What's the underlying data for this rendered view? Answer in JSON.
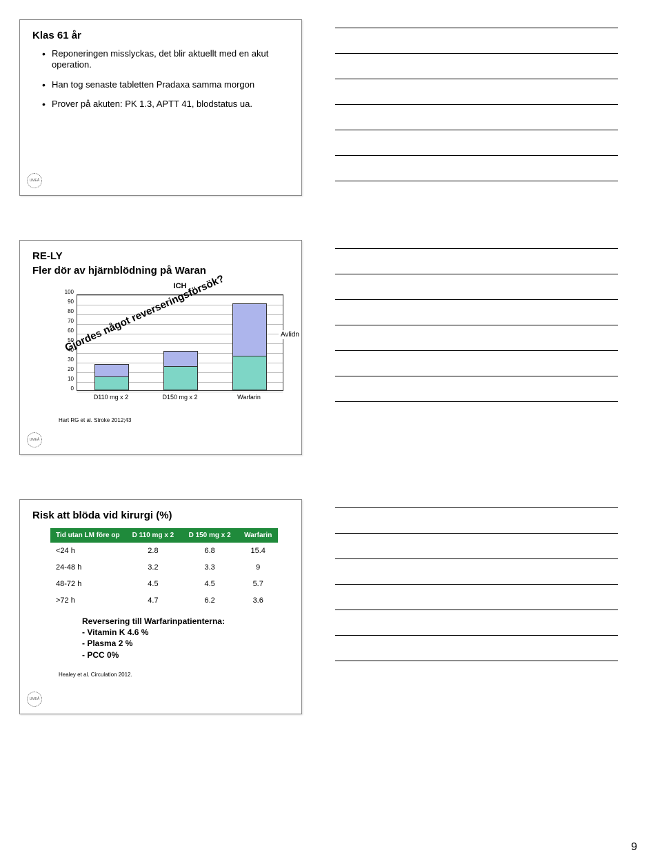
{
  "page_number": "9",
  "rule_lines_per_block": 7,
  "slide1": {
    "title": "Klas 61 år",
    "bullets": [
      "Reponeringen misslyckas, det blir aktuellt med en akut operation.",
      "Han tog senaste tabletten Pradaxa samma morgon",
      "Prover på akuten: PK 1.3, APTT 41, blodstatus ua."
    ]
  },
  "slide2": {
    "title_line1": "RE-LY",
    "title_line2": "Fler dör av hjärnblödning på Waran",
    "chart": {
      "title": "ICH",
      "ymax": 100,
      "yticks": [
        0,
        10,
        20,
        30,
        40,
        50,
        60,
        70,
        80,
        90,
        100
      ],
      "categories": [
        "D110 mg x 2",
        "D150 mg x 2",
        "Warfarin"
      ],
      "lower_values": [
        14,
        25,
        36
      ],
      "upper_values": [
        27,
        41,
        90
      ],
      "lower_color": "#7ed6c6",
      "upper_color": "#adb5ec",
      "border_color": "#333333",
      "grid_color": "#bbbbbb",
      "legend_label": "Avlidn",
      "overlay_text": "Gjordes något reverseringsförsök?"
    },
    "citation": "Hart RG et al. Stroke 2012;43"
  },
  "slide3": {
    "title": "Risk att blöda vid kirurgi (%)",
    "header_bg": "#1f8a3b",
    "columns": [
      "Tid utan LM före op",
      "D 110 mg x 2",
      "D 150 mg x 2",
      "Warfarin"
    ],
    "rows": [
      [
        "<24 h",
        "2.8",
        "6.8",
        "15.4"
      ],
      [
        "24-48 h",
        "3.2",
        "3.3",
        "9"
      ],
      [
        "48-72 h",
        "4.5",
        "4.5",
        "5.7"
      ],
      [
        ">72 h",
        "4.7",
        "6.2",
        "3.6"
      ]
    ],
    "reversing_title": "Reversering till Warfarinpatienterna:",
    "reversing_items": [
      "- Vitamin K 4.6 %",
      "- Plasma 2 %",
      "- PCC 0%"
    ],
    "citation": "Healey et al. Circulation 2012."
  }
}
